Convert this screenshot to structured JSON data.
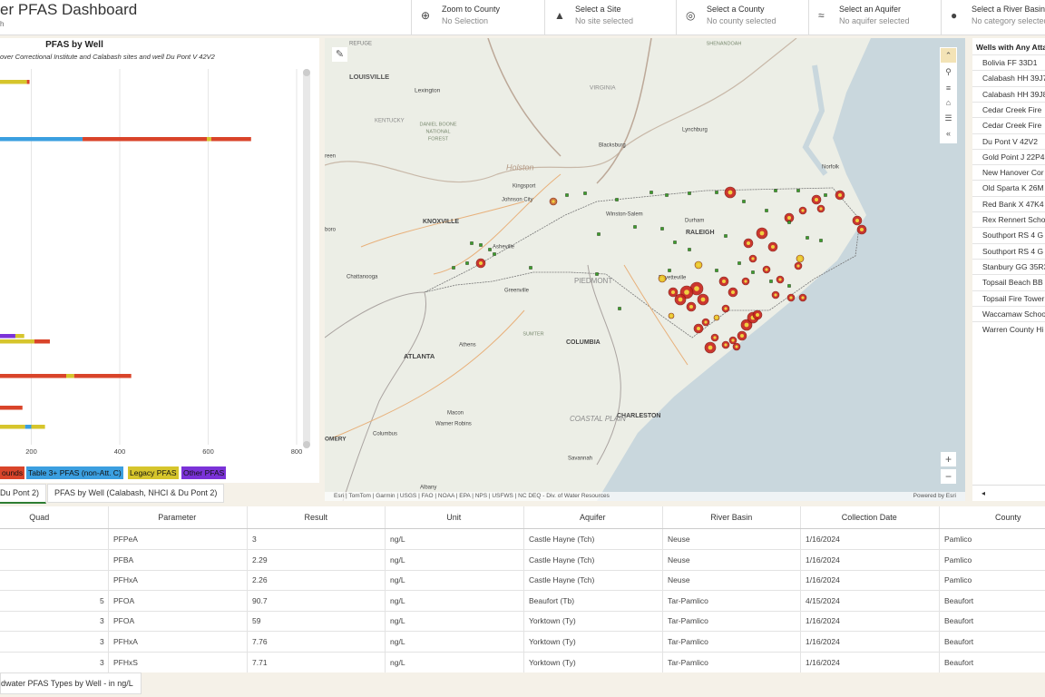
{
  "header": {
    "title": "er PFAS Dashboard",
    "subtitle": "h",
    "selectors": [
      {
        "label": "Zoom to County",
        "value": "No Selection"
      },
      {
        "label": "Select a Site",
        "value": "No site selected"
      },
      {
        "label": "Select a County",
        "value": "No county selected"
      },
      {
        "label": "Select an Aquifer",
        "value": "No aquifer selected"
      },
      {
        "label": "Select a River Basin",
        "value": "No category selected"
      }
    ]
  },
  "chart": {
    "type": "bar",
    "orientation": "horizontal",
    "title": "PFAS by Well",
    "subtitle": "over Correctional Institute and Calabash sites and well Du Pont V 42V2",
    "series": [
      {
        "name": "ounds",
        "color": "#d9442a"
      },
      {
        "name": "Table 3+ PFAS (non-Att. C)",
        "color": "#3b9fe0"
      },
      {
        "name": "Legacy PFAS",
        "color": "#d6c52c"
      },
      {
        "name": "Other PFAS",
        "color": "#7b32d8"
      }
    ],
    "bars": [
      {
        "segments": [
          {
            "series": 2,
            "value": 190
          },
          {
            "series": 0,
            "value": 6
          }
        ]
      },
      {
        "segments": [
          {
            "series": 1,
            "value": 316
          },
          {
            "series": 0,
            "value": 281
          },
          {
            "series": 2,
            "value": 10
          },
          {
            "series": 0,
            "value": 90
          }
        ]
      },
      {
        "segments": [
          {
            "series": 3,
            "value": 164
          },
          {
            "series": 2,
            "value": 20
          }
        ]
      },
      {
        "segments": [
          {
            "series": 2,
            "value": 207
          },
          {
            "series": 0,
            "value": 35
          }
        ]
      },
      {
        "segments": [
          {
            "series": 0,
            "value": 279
          },
          {
            "series": 2,
            "value": 18
          },
          {
            "series": 0,
            "value": 129
          }
        ]
      },
      {
        "segments": [
          {
            "series": 0,
            "value": 180
          }
        ]
      },
      {
        "segments": [
          {
            "series": 2,
            "value": 186
          },
          {
            "series": 1,
            "value": 14
          },
          {
            "series": 2,
            "value": 31
          }
        ]
      }
    ],
    "xlim": [
      0,
      800
    ],
    "xticks": [
      200,
      400,
      600,
      800
    ],
    "grid": true
  },
  "tabs": [
    "Du Pont 2)",
    "PFAS by Well (Calabash, NHCI & Du Pont 2)"
  ],
  "map": {
    "labels": [
      "REFUGE",
      "LOUISVILLE",
      "Lexington",
      "KENTUCKY",
      "DANIEL BOONE",
      "NATIONAL",
      "FOREST",
      "VIRGINIA",
      "Blacksburg",
      "Lynchburg",
      "SHENANDOAH",
      "Holston",
      "Kingsport",
      "Johnson City",
      "KNOXVILLE",
      "Winston-Salem",
      "Durham",
      "RALEIGH",
      "Asheville",
      "Chattanooga",
      "Greenville",
      "Fayetteville",
      "PIEDMONT",
      "ATLANTA",
      "Athens",
      "SUMTER",
      "COLUMBIA",
      "Macon",
      "Warner Robins",
      "Columbus",
      "OMERY",
      "CHARLESTON",
      "Savannah",
      "Albany",
      "Norfolk",
      "reen",
      "boro",
      "COASTAL PLAIN"
    ],
    "attribution": "Esri | TomTom | Garmin | USGS | FAO | NOAA | EPA | NPS | USFWS | NC DEQ - Div. of Water Resources",
    "powered_by": "Powered by Esri"
  },
  "list": {
    "title": "Wells with Any Atta",
    "items": [
      "Bolivia FF 33D1",
      "Calabash HH 39J7",
      "Calabash HH 39J8",
      "Cedar Creek Fire",
      "Cedar Creek Fire",
      "Du Pont V 42V2",
      "Gold Point J 22P4",
      "New Hanover Cor",
      "Old Sparta K 26M",
      "Red Bank X 47K4",
      "Rex Rennert Schoo",
      "Southport RS 4 G",
      "Southport RS 4 G",
      "Stanbury GG 35R3",
      "Topsail Beach BB",
      "Topsail Fire Tower",
      "Waccamaw Schoo",
      "Warren County Hi"
    ]
  },
  "table": {
    "columns": [
      "Quad",
      "Parameter",
      "Result",
      "Unit",
      "Aquifer",
      "River Basin",
      "Collection Date",
      "County"
    ],
    "rows": [
      {
        "parameter": "PFPeA",
        "result": "3",
        "unit": "ng/L",
        "aquifer": "Castle Hayne (Tch)",
        "basin": "Neuse",
        "date": "1/16/2024",
        "county": "Pamlico"
      },
      {
        "parameter": "PFBA",
        "result": "2.29",
        "unit": "ng/L",
        "aquifer": "Castle Hayne (Tch)",
        "basin": "Neuse",
        "date": "1/16/2024",
        "county": "Pamlico"
      },
      {
        "parameter": "PFHxA",
        "result": "2.26",
        "unit": "ng/L",
        "aquifer": "Castle Hayne (Tch)",
        "basin": "Neuse",
        "date": "1/16/2024",
        "county": "Pamlico"
      },
      {
        "quad": "5",
        "parameter": "PFOA",
        "result": "90.7",
        "unit": "ng/L",
        "aquifer": "Beaufort (Tb)",
        "basin": "Tar-Pamlico",
        "date": "4/15/2024",
        "county": "Beaufort"
      },
      {
        "quad": "3",
        "parameter": "PFOA",
        "result": "59",
        "unit": "ng/L",
        "aquifer": "Yorktown (Ty)",
        "basin": "Tar-Pamlico",
        "date": "1/16/2024",
        "county": "Beaufort"
      },
      {
        "quad": "3",
        "parameter": "PFHxA",
        "result": "7.76",
        "unit": "ng/L",
        "aquifer": "Yorktown (Ty)",
        "basin": "Tar-Pamlico",
        "date": "1/16/2024",
        "county": "Beaufort"
      },
      {
        "quad": "3",
        "parameter": "PFHxS",
        "result": "7.71",
        "unit": "ng/L",
        "aquifer": "Yorktown (Ty)",
        "basin": "Tar-Pamlico",
        "date": "1/16/2024",
        "county": "Beaufort"
      }
    ]
  },
  "footer_tab": "dwater PFAS Types by Well - in ng/L"
}
